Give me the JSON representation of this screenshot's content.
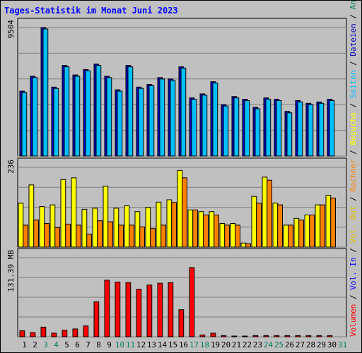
{
  "title": "Tages-Statistik im Monat Juni 2023",
  "chart_data": {
    "type": "bar",
    "categories": [
      "1",
      "2",
      "3",
      "4",
      "5",
      "6",
      "7",
      "8",
      "9",
      "10",
      "11",
      "12",
      "13",
      "14",
      "15",
      "16",
      "17",
      "18",
      "19",
      "20",
      "21",
      "22",
      "23",
      "24",
      "25",
      "26",
      "27",
      "28",
      "29",
      "30",
      "31"
    ],
    "weekend_days": [
      "3",
      "4",
      "10",
      "11",
      "17",
      "18",
      "24",
      "25",
      "31"
    ],
    "colors": {
      "anfragen": "#00805c",
      "dateien": "#0000c0",
      "seiten": "#00c0ff",
      "besuche": "#ffff00",
      "rechner": "#ff8000",
      "vol_out": "#e0c000",
      "vol_in": "#0000ff",
      "volumen": "#ff0000",
      "day_weekday": "#000000",
      "day_weekend": "#00805c"
    },
    "panels": [
      {
        "scale_label": "9504",
        "ylim": [
          0,
          9504
        ],
        "series": [
          {
            "name": "Anfragen",
            "values": [
              4800,
              5900,
              9504,
              5100,
              6700,
              6000,
              6400,
              6800,
              5900,
              4900,
              6700,
              5100,
              5300,
              5800,
              5700,
              6600,
              4300,
              4600,
              5500,
              3800,
              4400,
              4200,
              3600,
              4300,
              4200,
              3300,
              4100,
              3900,
              4000,
              4200,
              0
            ]
          },
          {
            "name": "Dateien",
            "values": [
              4700,
              5800,
              9400,
              5000,
              6600,
              5900,
              6300,
              6700,
              5800,
              4800,
              6600,
              5000,
              5200,
              5700,
              5600,
              6500,
              4200,
              4500,
              5400,
              3700,
              4300,
              4100,
              3500,
              4200,
              4100,
              3200,
              4000,
              3800,
              3900,
              4100,
              0
            ]
          }
        ],
        "side_labels": [
          "Anfragen",
          "Dateien",
          "Seiten"
        ]
      },
      {
        "scale_label": "236",
        "ylim": [
          0,
          236
        ],
        "series": [
          {
            "name": "Besuche",
            "values": [
              130,
              184,
              120,
              125,
              200,
              205,
              112,
              115,
              180,
              115,
              122,
              105,
              117,
              133,
              140,
              227,
              110,
              105,
              105,
              70,
              70,
              12,
              150,
              207,
              130,
              65,
              85,
              95,
              125,
              153,
              0
            ]
          },
          {
            "name": "Rechner",
            "values": [
              65,
              80,
              70,
              58,
              68,
              65,
              38,
              78,
              75,
              65,
              65,
              60,
              55,
              65,
              132,
              205,
              110,
              95,
              95,
              65,
              65,
              10,
              130,
              198,
              125,
              65,
              80,
              95,
              125,
              145,
              0
            ]
          }
        ],
        "side_labels": [
          "Besuche",
          "Rechner",
          "Vol. Out",
          "Vol. In"
        ]
      },
      {
        "scale_label": "131.39 MB",
        "ylim": [
          0,
          131.39
        ],
        "series": [
          {
            "name": "Volumen",
            "values": [
              10,
              7,
              16,
              6,
              11,
              13,
              18,
              58,
              94,
              91,
              90,
              79,
              86,
              89,
              90,
              45,
              115,
              3,
              6,
              2,
              1,
              1,
              2,
              2,
              2,
              2,
              2,
              2,
              2,
              2,
              0
            ]
          }
        ],
        "side_labels": [
          "Volumen"
        ]
      }
    ],
    "side_axis": [
      "Volumen",
      "Vol. In",
      "Vol. Out",
      "Rechner",
      "Besuche",
      "Seiten",
      "Dateien",
      "Anfragen"
    ],
    "separator": " / "
  }
}
